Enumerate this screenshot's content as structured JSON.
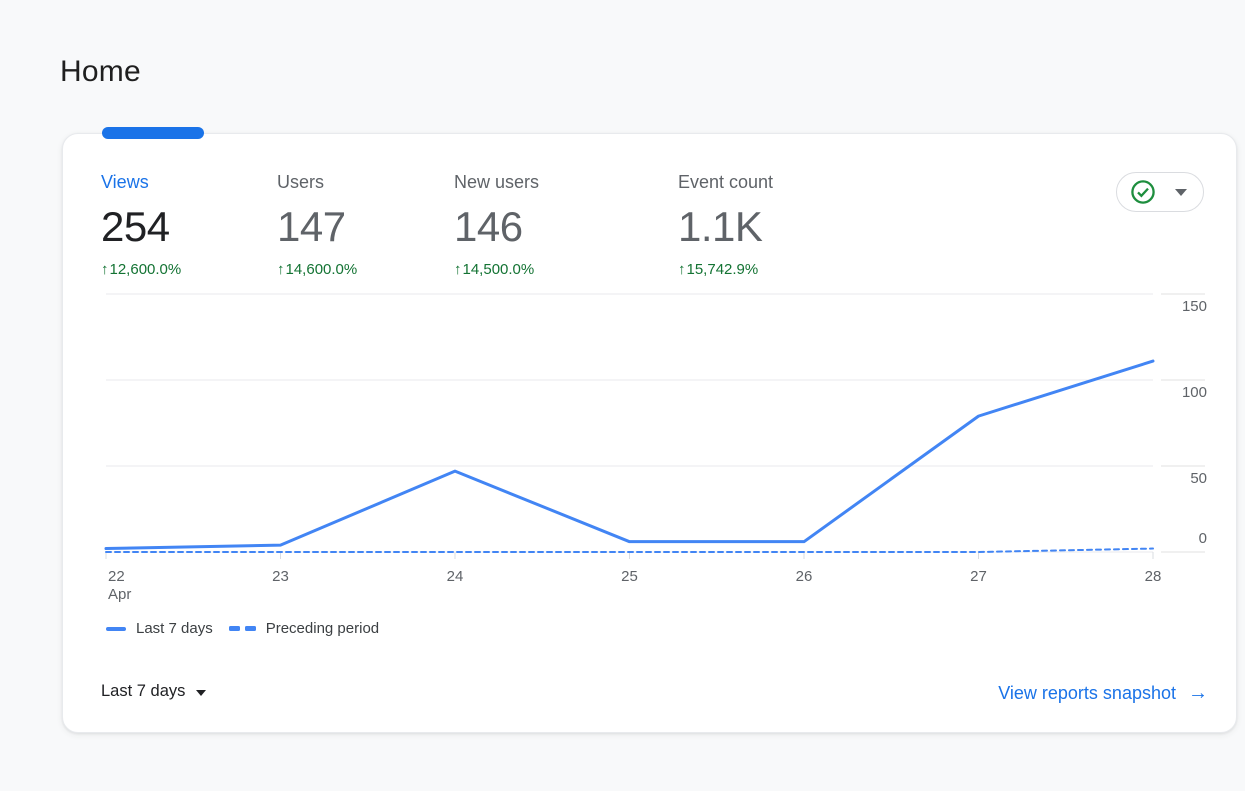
{
  "page": {
    "title": "Home",
    "background": "#f8f9fa"
  },
  "card": {
    "metrics": [
      {
        "label": "Views",
        "value": "254",
        "delta": "12,600.0%",
        "selected": true
      },
      {
        "label": "Users",
        "value": "147",
        "delta": "14,600.0%",
        "selected": false
      },
      {
        "label": "New users",
        "value": "146",
        "delta": "14,500.0%",
        "selected": false
      },
      {
        "label": "Event count",
        "value": "1.1K",
        "delta": "15,742.9%",
        "selected": false
      }
    ],
    "status_button": {
      "icon": "check-circle",
      "check_color": "#1e8e3e"
    },
    "legend": [
      {
        "label": "Last 7 days",
        "style": "solid"
      },
      {
        "label": "Preceding period",
        "style": "dashed"
      }
    ],
    "date_range": {
      "label": "Last 7 days"
    },
    "link": {
      "label": "View reports snapshot"
    }
  },
  "icons": {
    "up_arrow": "↑",
    "link_arrow": "→"
  },
  "chart_data": {
    "type": "line",
    "x": [
      {
        "label": "22",
        "sub": "Apr"
      },
      {
        "label": "23"
      },
      {
        "label": "24"
      },
      {
        "label": "25"
      },
      {
        "label": "26"
      },
      {
        "label": "27"
      },
      {
        "label": "28"
      }
    ],
    "series": [
      {
        "name": "Last 7 days",
        "style": "solid",
        "values": [
          2,
          4,
          47,
          6,
          6,
          79,
          111
        ]
      },
      {
        "name": "Preceding period",
        "style": "dashed",
        "values": [
          0,
          0,
          0,
          0,
          0,
          0,
          2
        ]
      }
    ],
    "ylim": [
      0,
      150
    ],
    "yticks": [
      0,
      50,
      100,
      150
    ],
    "line_color": "#4285f4",
    "grid": "horizontal",
    "legend_position": "bottom-left",
    "y_axis_side": "right"
  }
}
